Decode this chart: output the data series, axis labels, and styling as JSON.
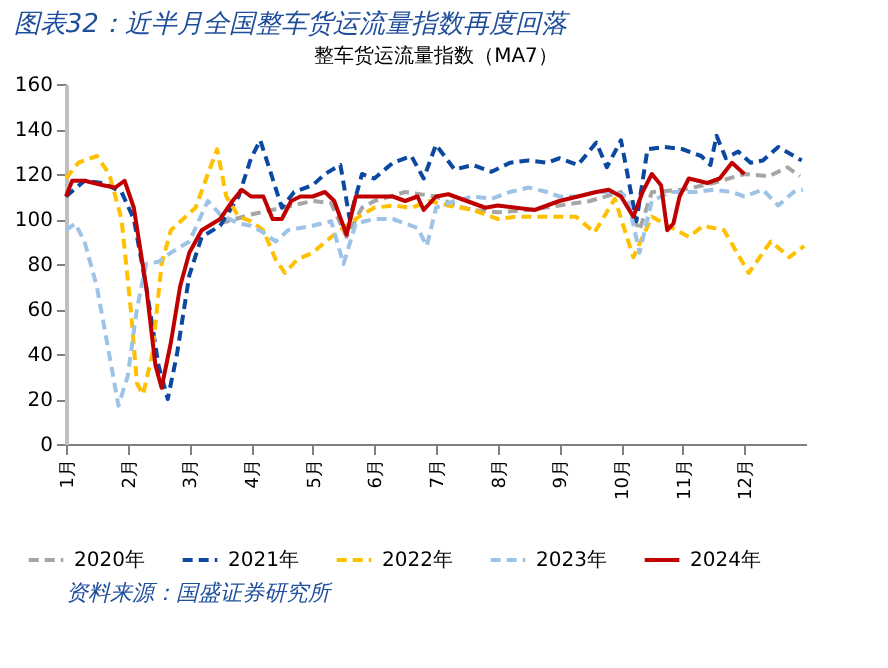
{
  "chart_data": {
    "type": "line",
    "title": "图表32：近半月全国整车货运流量指数再度回落",
    "subtitle": "整车货运流量指数（MA7）",
    "xlim": [
      1,
      13
    ],
    "xticks": [
      {
        "value": 1,
        "label": "1月"
      },
      {
        "value": 2,
        "label": "2月"
      },
      {
        "value": 3,
        "label": "3月"
      },
      {
        "value": 4,
        "label": "4月"
      },
      {
        "value": 5,
        "label": "5月"
      },
      {
        "value": 6,
        "label": "6月"
      },
      {
        "value": 7,
        "label": "7月"
      },
      {
        "value": 8,
        "label": "8月"
      },
      {
        "value": 9,
        "label": "9月"
      },
      {
        "value": 10,
        "label": "10月"
      },
      {
        "value": 11,
        "label": "11月"
      },
      {
        "value": 12,
        "label": "12月"
      }
    ],
    "ylim": [
      0,
      160
    ],
    "yticks": [
      0,
      20,
      40,
      60,
      80,
      100,
      120,
      140,
      160
    ],
    "grid": false,
    "legend": "bottom",
    "marker": "none",
    "annotations": [
      "资料来源：国盛证券研究所"
    ],
    "series": [
      {
        "name": "2020年",
        "color": "#a6a6a6",
        "line_style": "dashed",
        "x": [
          3.5,
          4.0,
          4.5,
          5.0,
          5.3,
          5.55,
          5.8,
          6.0,
          6.5,
          7.0,
          7.3,
          7.6,
          8.0,
          8.5,
          9.0,
          9.5,
          10.0,
          10.3,
          10.5,
          11.0,
          11.5,
          12.0,
          12.4,
          12.7,
          12.9
        ],
        "values": [
          98,
          102,
          105,
          108,
          107,
          92,
          105,
          108,
          112,
          110,
          106,
          104,
          103,
          104,
          106,
          108,
          112,
          95,
          112,
          113,
          116,
          120,
          119,
          123,
          119
        ]
      },
      {
        "name": "2021年",
        "color": "#0b48a0",
        "line_style": "dashed",
        "x": [
          1.0,
          1.3,
          1.6,
          1.9,
          2.1,
          2.3,
          2.5,
          2.65,
          2.8,
          3.0,
          3.2,
          3.5,
          3.8,
          4.0,
          4.15,
          4.35,
          4.5,
          4.7,
          5.0,
          5.2,
          5.45,
          5.6,
          5.8,
          6.0,
          6.3,
          6.6,
          6.8,
          7.0,
          7.3,
          7.6,
          7.9,
          8.2,
          8.5,
          8.8,
          9.0,
          9.3,
          9.6,
          9.77,
          10.0,
          10.25,
          10.43,
          10.7,
          11.0,
          11.3,
          11.45,
          11.55,
          11.7,
          11.9,
          12.1,
          12.3,
          12.55,
          12.93
        ],
        "values": [
          110,
          117,
          116,
          112,
          100,
          70,
          35,
          20,
          40,
          75,
          92,
          97,
          110,
          127,
          135,
          118,
          105,
          112,
          115,
          120,
          124,
          100,
          120,
          118,
          125,
          128,
          118,
          133,
          122,
          124,
          121,
          125,
          126,
          125,
          127,
          124,
          134,
          123,
          135,
          99,
          131,
          132,
          131,
          128,
          124,
          137,
          127,
          130,
          125,
          126,
          132,
          126
        ]
      },
      {
        "name": "2022年",
        "color": "#ffc000",
        "line_style": "dashed",
        "x": [
          1.0,
          1.2,
          1.5,
          1.7,
          1.9,
          2.05,
          2.15,
          2.25,
          2.4,
          2.55,
          2.7,
          2.9,
          3.1,
          3.3,
          3.45,
          3.6,
          3.8,
          4.0,
          4.2,
          4.4,
          4.55,
          4.75,
          5.0,
          5.3,
          5.6,
          5.8,
          6.0,
          6.3,
          6.6,
          6.9,
          7.2,
          7.6,
          8.0,
          8.3,
          8.83,
          9.27,
          9.57,
          9.9,
          10.2,
          10.5,
          11.1,
          11.33,
          11.67,
          12.07,
          12.43,
          12.73,
          12.97
        ],
        "values": [
          118,
          125,
          128,
          120,
          100,
          60,
          27,
          22,
          40,
          80,
          95,
          100,
          105,
          120,
          131,
          110,
          101,
          99,
          95,
          82,
          76,
          82,
          85,
          92,
          98,
          102,
          105,
          106,
          105,
          108,
          106,
          104,
          100,
          101,
          101,
          101,
          94,
          109,
          83,
          101,
          92,
          97,
          95,
          76,
          90,
          83,
          88
        ]
      },
      {
        "name": "2023年",
        "color": "#9dc3e6",
        "line_style": "dashed",
        "x": [
          1.0,
          1.15,
          1.3,
          1.5,
          1.7,
          1.85,
          2.0,
          2.15,
          2.3,
          2.5,
          2.7,
          3.0,
          3.3,
          3.5,
          3.8,
          4.0,
          4.2,
          4.4,
          4.6,
          5.0,
          5.3,
          5.5,
          5.7,
          6.0,
          6.3,
          6.5,
          6.7,
          6.85,
          7.0,
          7.3,
          7.6,
          7.9,
          8.2,
          8.5,
          8.8,
          9.0,
          9.3,
          9.6,
          9.9,
          10.1,
          10.3,
          10.5,
          10.8,
          11.2,
          11.5,
          11.8,
          12.0,
          12.3,
          12.55,
          12.8,
          12.95
        ],
        "values": [
          95,
          98,
          90,
          70,
          40,
          17,
          30,
          60,
          80,
          81,
          85,
          90,
          108,
          102,
          98,
          97,
          94,
          90,
          95,
          97,
          99,
          80,
          98,
          100,
          100,
          98,
          96,
          88,
          105,
          108,
          110,
          109,
          112,
          114,
          112,
          110,
          110,
          112,
          112,
          110,
          85,
          108,
          112,
          112,
          113,
          112,
          110,
          113,
          106,
          112,
          113
        ]
      },
      {
        "name": "2024年",
        "color": "#c00000",
        "line_style": "solid",
        "x": [
          1.0,
          1.1,
          1.3,
          1.6,
          1.8,
          1.95,
          2.1,
          2.3,
          2.45,
          2.55,
          2.7,
          2.85,
          3.0,
          3.2,
          3.5,
          3.7,
          3.85,
          4.0,
          4.2,
          4.35,
          4.5,
          4.65,
          4.8,
          5.0,
          5.2,
          5.35,
          5.55,
          5.7,
          6.0,
          6.3,
          6.5,
          6.7,
          6.8,
          7.0,
          7.2,
          7.5,
          7.8,
          8.0,
          8.3,
          8.6,
          8.8,
          9.0,
          9.3,
          9.6,
          9.8,
          10.0,
          10.2,
          10.35,
          10.5,
          10.65,
          10.75,
          10.85,
          10.95,
          11.1,
          11.4,
          11.6,
          11.8,
          12.0,
          12.0
        ],
        "values": [
          110,
          117,
          117,
          115,
          114,
          117,
          105,
          70,
          35,
          25,
          45,
          70,
          85,
          95,
          100,
          108,
          113,
          110,
          110,
          100,
          100,
          108,
          110,
          110,
          112,
          108,
          93,
          110,
          110,
          110,
          108,
          110,
          104,
          110,
          111,
          108,
          105,
          106,
          105,
          104,
          106,
          108,
          110,
          112,
          113,
          110,
          101,
          112,
          120,
          115,
          95,
          98,
          110,
          118,
          116,
          118,
          125,
          120,
          120
        ]
      }
    ]
  }
}
